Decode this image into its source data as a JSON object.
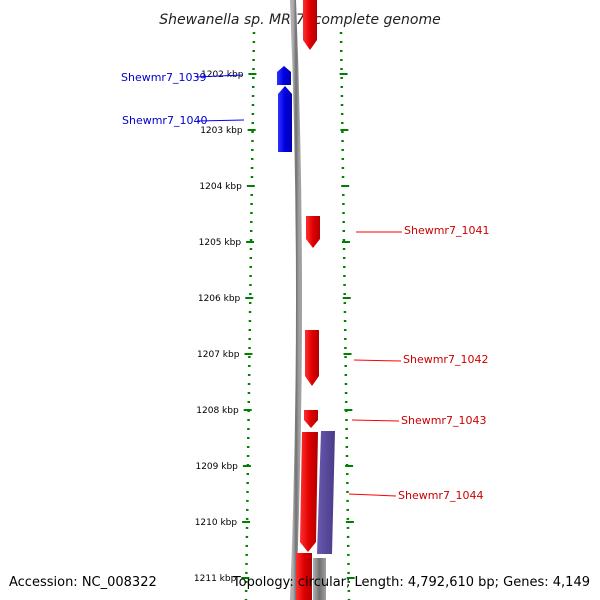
{
  "title": "Shewanella sp. MR-7, complete genome",
  "footer": {
    "accession": "Accession: NC_008322",
    "summary": "Topology: circular; Length: 4,792,610 bp; Genes: 4,149"
  },
  "colors": {
    "forward": "#ff0000",
    "reverse": "#0000ff",
    "other": "#5a4a9a",
    "backbone": "#808080",
    "ticks": "#008000"
  },
  "ruler": [
    "1202 kbp",
    "1203 kbp",
    "1204 kbp",
    "1205 kbp",
    "1206 kbp",
    "1207 kbp",
    "1208 kbp",
    "1209 kbp",
    "1210 kbp",
    "1211 kbp"
  ],
  "genes": [
    {
      "label": "Shewmr7_1039",
      "strand": "reverse"
    },
    {
      "label": "Shewmr7_1040",
      "strand": "reverse"
    },
    {
      "label": "Shewmr7_1041",
      "strand": "forward"
    },
    {
      "label": "Shewmr7_1042",
      "strand": "forward"
    },
    {
      "label": "Shewmr7_1043",
      "strand": "forward"
    },
    {
      "label": "Shewmr7_1044",
      "strand": "forward"
    }
  ]
}
